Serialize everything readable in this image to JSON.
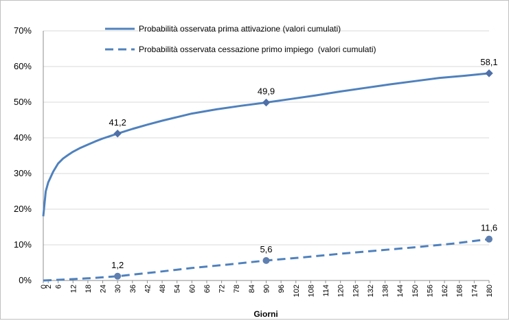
{
  "chart_data": {
    "type": "line",
    "title": "",
    "xlabel": "Giorni",
    "ylabel": "",
    "xlim": [
      0,
      180
    ],
    "ylim": [
      0,
      70
    ],
    "y_ticks": [
      "0%",
      "10%",
      "20%",
      "30%",
      "40%",
      "50%",
      "60%",
      "70%"
    ],
    "x_ticks": [
      "0",
      "2",
      "6",
      "12",
      "18",
      "24",
      "30",
      "36",
      "42",
      "48",
      "54",
      "60",
      "66",
      "72",
      "78",
      "84",
      "90",
      "96",
      "102",
      "108",
      "114",
      "120",
      "126",
      "132",
      "138",
      "144",
      "150",
      "156",
      "162",
      "168",
      "174",
      "180"
    ],
    "grid": true,
    "legend_position": "top",
    "series": [
      {
        "name": "Probabilità osservata prima attivazione (valori cumulati)",
        "style": "solid",
        "color": "#4f81bd",
        "marker": "diamond",
        "x": [
          0,
          1,
          2,
          4,
          6,
          8,
          10,
          12,
          15,
          18,
          21,
          24,
          27,
          30,
          36,
          42,
          48,
          54,
          60,
          70,
          80,
          90,
          100,
          110,
          120,
          130,
          140,
          150,
          160,
          170,
          180
        ],
        "y": [
          18.0,
          25.0,
          27.5,
          30.5,
          32.8,
          34.2,
          35.2,
          36.1,
          37.2,
          38.1,
          39.0,
          39.8,
          40.5,
          41.2,
          42.5,
          43.7,
          44.8,
          45.8,
          46.8,
          48.0,
          49.0,
          49.9,
          50.9,
          51.9,
          53.0,
          54.0,
          55.0,
          55.9,
          56.8,
          57.4,
          58.1
        ]
      },
      {
        "name": "Probabilità osservata cessazione primo impiego  (valori cumulati)",
        "style": "dashed",
        "color": "#4f81bd",
        "marker": "circle",
        "x": [
          0,
          10,
          20,
          30,
          45,
          60,
          75,
          90,
          105,
          120,
          135,
          150,
          165,
          180
        ],
        "y": [
          0.0,
          0.3,
          0.7,
          1.2,
          2.3,
          3.5,
          4.5,
          5.6,
          6.5,
          7.5,
          8.4,
          9.3,
          10.3,
          11.6
        ]
      }
    ],
    "data_labels": [
      {
        "x": 30,
        "y": 41.2,
        "text": "41,2"
      },
      {
        "x": 90,
        "y": 49.9,
        "text": "49,9"
      },
      {
        "x": 180,
        "y": 58.1,
        "text": "58,1"
      },
      {
        "x": 30,
        "y": 1.2,
        "text": "1,2"
      },
      {
        "x": 90,
        "y": 5.6,
        "text": "5,6"
      },
      {
        "x": 180,
        "y": 11.6,
        "text": "11,6"
      }
    ],
    "markers": [
      {
        "series": 0,
        "x": 30,
        "y": 41.2
      },
      {
        "series": 0,
        "x": 90,
        "y": 49.9
      },
      {
        "series": 0,
        "x": 180,
        "y": 58.1
      },
      {
        "series": 1,
        "x": 30,
        "y": 1.2
      },
      {
        "series": 1,
        "x": 90,
        "y": 5.6
      },
      {
        "series": 1,
        "x": 180,
        "y": 11.6
      }
    ]
  }
}
